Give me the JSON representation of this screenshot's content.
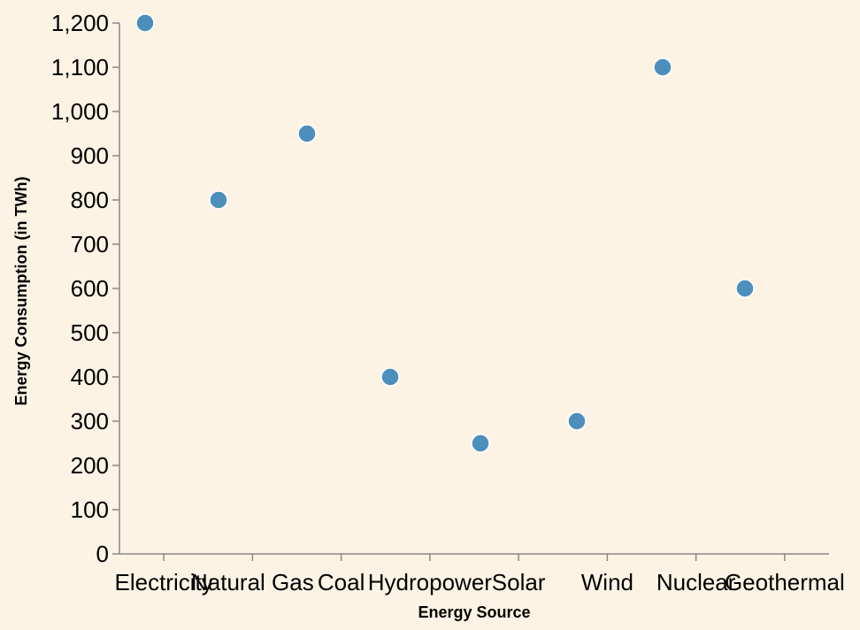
{
  "chart_data": {
    "type": "scatter",
    "title": "",
    "xlabel": "Energy Source",
    "ylabel": "Energy Consumption (in TWh)",
    "categories": [
      "Electricity",
      "Natural Gas",
      "Coal",
      "Hydropower",
      "Solar",
      "Wind",
      "Nuclear",
      "Geothermal"
    ],
    "values": [
      1200,
      800,
      950,
      400,
      250,
      300,
      1100,
      600
    ],
    "ylim": [
      0,
      1200
    ],
    "yticks": [
      0,
      100,
      200,
      300,
      400,
      500,
      600,
      700,
      800,
      900,
      1000,
      1100,
      1200
    ],
    "grid": false,
    "color": "#4c8fbd",
    "background": "#fdf3e5"
  }
}
